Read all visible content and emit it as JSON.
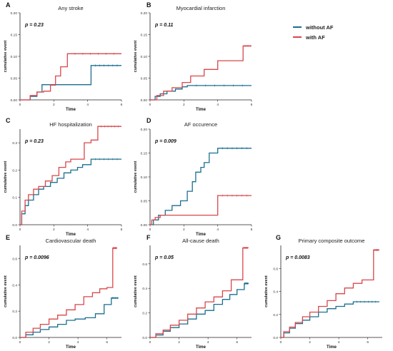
{
  "legend": {
    "items": [
      {
        "label": "without AF",
        "color": "#1a6f8f"
      },
      {
        "label": "with AF",
        "color": "#d9474b"
      }
    ]
  },
  "chart_data": [
    {
      "letter": "A",
      "type": "line",
      "title": "Any stroke",
      "p_text": "p = 0.23",
      "xlabel": "Time",
      "ylabel": "cumulative event",
      "xlim": [
        0,
        6
      ],
      "ylim": [
        0,
        0.2
      ],
      "xticks": [
        0,
        2,
        4,
        6
      ],
      "yticks": [
        0,
        0.05,
        0.1,
        0.15,
        0.2
      ],
      "ytick_labels": [
        "0.00",
        "0.05",
        "0.10",
        "0.15",
        "0.20"
      ],
      "series": [
        {
          "name": "without AF",
          "color": "#1a6f8f",
          "step": true,
          "x": [
            0,
            0.6,
            1.0,
            1.3,
            1.7,
            2.1,
            3.6,
            4.2,
            6.0
          ],
          "y": [
            0,
            0.008,
            0.018,
            0.035,
            0.035,
            0.035,
            0.035,
            0.079,
            0.079
          ]
        },
        {
          "name": "with AF",
          "color": "#d9474b",
          "step": true,
          "x": [
            0,
            0.6,
            1.0,
            1.4,
            1.8,
            2.1,
            2.4,
            2.8,
            6.0
          ],
          "y": [
            0,
            0.01,
            0.018,
            0.02,
            0.034,
            0.055,
            0.076,
            0.106,
            0.106
          ]
        }
      ]
    },
    {
      "letter": "B",
      "type": "line",
      "title": "Myocardial infarction",
      "p_text": "p = 0.11",
      "xlabel": "Time",
      "ylabel": "cumulative event",
      "xlim": [
        0,
        6
      ],
      "ylim": [
        0,
        0.2
      ],
      "xticks": [
        0,
        2,
        4,
        6
      ],
      "yticks": [
        0,
        0.05,
        0.1,
        0.15,
        0.2
      ],
      "ytick_labels": [
        "0.00",
        "0.05",
        "0.10",
        "0.15",
        "0.20"
      ],
      "series": [
        {
          "name": "without AF",
          "color": "#1a6f8f",
          "step": true,
          "x": [
            0,
            0.3,
            0.6,
            1.0,
            1.5,
            1.9,
            2.2,
            6.0
          ],
          "y": [
            0,
            0.008,
            0.014,
            0.02,
            0.025,
            0.03,
            0.033,
            0.033
          ]
        },
        {
          "name": "with AF",
          "color": "#d9474b",
          "step": true,
          "x": [
            0,
            0.4,
            0.8,
            1.3,
            1.9,
            2.4,
            3.2,
            4.0,
            5.5,
            6.0
          ],
          "y": [
            0,
            0.01,
            0.02,
            0.028,
            0.04,
            0.055,
            0.07,
            0.09,
            0.124,
            0.124
          ]
        }
      ]
    },
    {
      "letter": "C",
      "type": "line",
      "title": "HF hospitalization",
      "p_text": "p = 0.23",
      "xlabel": "Time",
      "ylabel": "cumulative event",
      "xlim": [
        0,
        6
      ],
      "ylim": [
        0,
        0.35
      ],
      "xticks": [
        0,
        2,
        4,
        6
      ],
      "yticks": [
        0,
        0.1,
        0.2,
        0.3
      ],
      "ytick_labels": [
        "0.0",
        "0.1",
        "0.2",
        "0.3"
      ],
      "series": [
        {
          "name": "without AF",
          "color": "#1a6f8f",
          "step": true,
          "x": [
            0,
            0.1,
            0.3,
            0.5,
            0.8,
            1.1,
            1.4,
            1.8,
            2.2,
            2.6,
            3.0,
            3.4,
            3.7,
            4.2,
            6.0
          ],
          "y": [
            0,
            0.04,
            0.07,
            0.09,
            0.11,
            0.13,
            0.14,
            0.155,
            0.17,
            0.19,
            0.2,
            0.21,
            0.22,
            0.24,
            0.24
          ]
        },
        {
          "name": "with AF",
          "color": "#d9474b",
          "step": true,
          "x": [
            0,
            0.1,
            0.3,
            0.5,
            0.8,
            1.1,
            1.5,
            1.9,
            2.3,
            2.7,
            3.0,
            3.4,
            3.8,
            4.2,
            4.6,
            6.0
          ],
          "y": [
            0,
            0.05,
            0.09,
            0.11,
            0.13,
            0.14,
            0.16,
            0.18,
            0.21,
            0.23,
            0.24,
            0.24,
            0.3,
            0.31,
            0.36,
            0.36
          ]
        }
      ]
    },
    {
      "letter": "D",
      "type": "line",
      "title": "AF occurence",
      "p_text": "p = 0.009",
      "xlabel": "Time",
      "ylabel": "cumulative event",
      "xlim": [
        0,
        6
      ],
      "ylim": [
        0,
        0.2
      ],
      "xticks": [
        0,
        2,
        4,
        6
      ],
      "yticks": [
        0,
        0.05,
        0.1,
        0.15,
        0.2
      ],
      "ytick_labels": [
        "0.00",
        "0.05",
        "0.10",
        "0.15",
        "0.20"
      ],
      "series": [
        {
          "name": "without AF",
          "color": "#1a6f8f",
          "step": true,
          "x": [
            0,
            0.2,
            0.5,
            0.9,
            1.3,
            1.8,
            2.2,
            2.5,
            2.7,
            3.0,
            3.2,
            3.5,
            3.8,
            4.0,
            6.0
          ],
          "y": [
            0,
            0.01,
            0.02,
            0.03,
            0.04,
            0.05,
            0.07,
            0.09,
            0.11,
            0.12,
            0.13,
            0.15,
            0.15,
            0.16,
            0.16
          ]
        },
        {
          "name": "with AF",
          "color": "#d9474b",
          "step": true,
          "x": [
            0,
            0.1,
            0.3,
            0.6,
            3.9,
            4.0,
            6.0
          ],
          "y": [
            0,
            0.01,
            0.015,
            0.02,
            0.02,
            0.061,
            0.061
          ]
        }
      ]
    },
    {
      "letter": "E",
      "type": "line",
      "title": "Cardiovascular death",
      "p_text": "p = 0.0096",
      "xlabel": "Time",
      "ylabel": "cumulative event",
      "xlim": [
        0,
        7
      ],
      "ylim": [
        0,
        0.7
      ],
      "xticks": [
        0,
        2,
        4,
        6
      ],
      "yticks": [
        0,
        0.2,
        0.4,
        0.6
      ],
      "ytick_labels": [
        "0.0",
        "0.2",
        "0.4",
        "0.6"
      ],
      "series": [
        {
          "name": "without AF",
          "color": "#1a6f8f",
          "step": true,
          "x": [
            0,
            0.4,
            0.9,
            1.4,
            2.0,
            2.6,
            3.2,
            3.8,
            4.5,
            5.2,
            5.8,
            6.3,
            6.8
          ],
          "y": [
            0,
            0.02,
            0.04,
            0.06,
            0.08,
            0.1,
            0.13,
            0.14,
            0.15,
            0.18,
            0.25,
            0.3,
            0.3
          ]
        },
        {
          "name": "with AF",
          "color": "#d9474b",
          "step": true,
          "x": [
            0,
            0.4,
            0.9,
            1.4,
            2.0,
            2.6,
            3.2,
            3.8,
            4.4,
            5.0,
            5.5,
            6.0,
            6.4,
            6.7
          ],
          "y": [
            0,
            0.04,
            0.07,
            0.1,
            0.14,
            0.17,
            0.21,
            0.25,
            0.31,
            0.34,
            0.37,
            0.38,
            0.68,
            0.68
          ]
        }
      ]
    },
    {
      "letter": "F",
      "type": "line",
      "title": "All-cause death",
      "p_text": "p = 0.05",
      "xlabel": "Time",
      "ylabel": "cumulative event",
      "xlim": [
        0,
        7
      ],
      "ylim": [
        0,
        0.75
      ],
      "xticks": [
        0,
        2,
        4,
        6
      ],
      "yticks": [
        0,
        0.2,
        0.4,
        0.6
      ],
      "ytick_labels": [
        "0.0",
        "0.2",
        "0.4",
        "0.6"
      ],
      "series": [
        {
          "name": "without AF",
          "color": "#1a6f8f",
          "step": true,
          "x": [
            0,
            0.4,
            0.9,
            1.4,
            2.0,
            2.6,
            3.2,
            3.8,
            4.4,
            5.0,
            5.5,
            6.0,
            6.5,
            6.8
          ],
          "y": [
            0,
            0.02,
            0.05,
            0.08,
            0.11,
            0.15,
            0.19,
            0.22,
            0.27,
            0.31,
            0.35,
            0.39,
            0.44,
            0.44
          ]
        },
        {
          "name": "with AF",
          "color": "#d9474b",
          "step": true,
          "x": [
            0,
            0.4,
            0.9,
            1.4,
            2.0,
            2.6,
            3.2,
            3.8,
            4.4,
            5.0,
            5.6,
            6.1,
            6.4,
            6.8
          ],
          "y": [
            0,
            0.03,
            0.06,
            0.1,
            0.14,
            0.19,
            0.24,
            0.29,
            0.33,
            0.38,
            0.47,
            0.47,
            0.73,
            0.73
          ]
        }
      ]
    },
    {
      "letter": "G",
      "type": "line",
      "title": "Primary composite outcome",
      "p_text": "p = 0.0083",
      "xlabel": "Time",
      "ylabel": "cumulative event",
      "xlim": [
        0,
        7
      ],
      "ylim": [
        0,
        0.8
      ],
      "xticks": [
        0,
        2,
        4,
        6
      ],
      "yticks": [
        0,
        0.2,
        0.4,
        0.6
      ],
      "ytick_labels": [
        "0.0",
        "0.2",
        "0.4",
        "0.6"
      ],
      "series": [
        {
          "name": "without AF",
          "color": "#1a6f8f",
          "step": true,
          "x": [
            0,
            0.2,
            0.6,
            1.0,
            1.5,
            2.0,
            2.6,
            3.2,
            3.8,
            4.4,
            5.0,
            6.8
          ],
          "y": [
            0,
            0.04,
            0.08,
            0.12,
            0.15,
            0.18,
            0.22,
            0.25,
            0.27,
            0.29,
            0.31,
            0.31
          ]
        },
        {
          "name": "with AF",
          "color": "#d9474b",
          "step": true,
          "x": [
            0,
            0.2,
            0.6,
            1.0,
            1.5,
            2.0,
            2.6,
            3.2,
            3.8,
            4.4,
            5.0,
            5.6,
            6.2,
            6.4,
            6.8
          ],
          "y": [
            0,
            0.05,
            0.09,
            0.13,
            0.18,
            0.22,
            0.27,
            0.32,
            0.38,
            0.43,
            0.47,
            0.5,
            0.5,
            0.76,
            0.76
          ]
        }
      ]
    }
  ]
}
